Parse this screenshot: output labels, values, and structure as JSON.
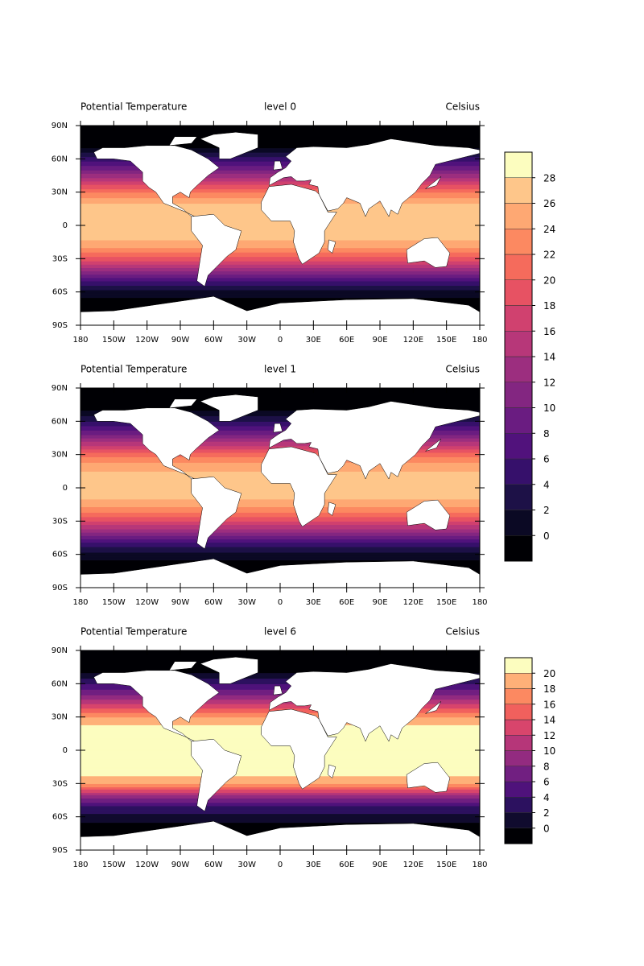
{
  "chart_data": [
    {
      "type": "contour",
      "title_left": "Potential Temperature",
      "title_center": "level 0",
      "title_right": "Celsius",
      "lat": [
        -90,
        -80,
        -70,
        -60,
        -50,
        -40,
        -30,
        -20,
        -10,
        0,
        10,
        20,
        30,
        40,
        50,
        60,
        70,
        80,
        90
      ],
      "values": [
        -2,
        -2,
        -1,
        1,
        6,
        13,
        19,
        24,
        27,
        27,
        28,
        26,
        22,
        16,
        10,
        5,
        0,
        -2,
        -2
      ],
      "levels": [
        -2,
        0,
        2,
        4,
        6,
        8,
        10,
        12,
        14,
        16,
        18,
        20,
        22,
        24,
        26,
        28,
        30
      ],
      "colors": [
        "#000004",
        "#0b0924",
        "#1d1147",
        "#36106b",
        "#51127c",
        "#6a1c81",
        "#832681",
        "#9c2e7f",
        "#b73779",
        "#d0416f",
        "#e75263",
        "#f56b5c",
        "#fc8961",
        "#fea873",
        "#fec68a",
        "#fcfdbf"
      ],
      "colorbar": true,
      "cbar_ticks": [
        0,
        2,
        4,
        6,
        8,
        10,
        12,
        14,
        16,
        18,
        20,
        22,
        24,
        26,
        28
      ],
      "xlim": [
        -180,
        180
      ],
      "ylim": [
        -90,
        90
      ],
      "xticks": [
        {
          "value": -180,
          "label": "180"
        },
        {
          "value": -150,
          "label": "150W"
        },
        {
          "value": -120,
          "label": "120W"
        },
        {
          "value": -90,
          "label": "90W"
        },
        {
          "value": -60,
          "label": "60W"
        },
        {
          "value": -30,
          "label": "30W"
        },
        0,
        {
          "value": 30,
          "label": "30E"
        },
        {
          "value": 60,
          "label": "60E"
        },
        {
          "value": 90,
          "label": "90E"
        },
        {
          "value": 120,
          "label": "120E"
        },
        {
          "value": 150,
          "label": "150E"
        },
        {
          "value": 180,
          "label": "180"
        }
      ],
      "yticks": [
        {
          "value": 90,
          "label": "90N"
        },
        {
          "value": 60,
          "label": "60N"
        },
        {
          "value": 30,
          "label": "30N"
        },
        0,
        {
          "value": -30,
          "label": "30S"
        },
        {
          "value": -60,
          "label": "60S"
        },
        {
          "value": -90,
          "label": "90S"
        }
      ]
    },
    {
      "type": "contour",
      "title_left": "Potential Temperature",
      "title_center": "level 1",
      "title_right": "Celsius",
      "lat": [
        -90,
        -80,
        -70,
        -60,
        -50,
        -40,
        -30,
        -20,
        -10,
        0,
        10,
        20,
        30,
        40,
        50,
        60,
        70,
        80,
        90
      ],
      "values": [
        -2,
        -2,
        -1,
        1,
        5,
        12,
        18,
        23,
        26,
        26,
        27,
        25,
        21,
        15,
        9,
        4,
        0,
        -2,
        -2
      ],
      "levels": [
        -2,
        0,
        2,
        4,
        6,
        8,
        10,
        12,
        14,
        16,
        18,
        20,
        22,
        24,
        26,
        28,
        30
      ],
      "colors": [
        "#000004",
        "#0b0924",
        "#1d1147",
        "#36106b",
        "#51127c",
        "#6a1c81",
        "#832681",
        "#9c2e7f",
        "#b73779",
        "#d0416f",
        "#e75263",
        "#f56b5c",
        "#fc8961",
        "#fea873",
        "#fec68a",
        "#fcfdbf"
      ],
      "colorbar": false,
      "xlim": [
        -180,
        180
      ],
      "ylim": [
        -90,
        90
      ],
      "xticks": [
        {
          "value": -180,
          "label": "180"
        },
        {
          "value": -150,
          "label": "150W"
        },
        {
          "value": -120,
          "label": "120W"
        },
        {
          "value": -90,
          "label": "90W"
        },
        {
          "value": -60,
          "label": "60W"
        },
        {
          "value": -30,
          "label": "30W"
        },
        0,
        {
          "value": 30,
          "label": "30E"
        },
        {
          "value": 60,
          "label": "60E"
        },
        {
          "value": 90,
          "label": "90E"
        },
        {
          "value": 120,
          "label": "120E"
        },
        {
          "value": 150,
          "label": "150E"
        },
        {
          "value": 180,
          "label": "180"
        }
      ],
      "yticks": [
        {
          "value": 90,
          "label": "90N"
        },
        {
          "value": 60,
          "label": "60N"
        },
        {
          "value": 30,
          "label": "30N"
        },
        0,
        {
          "value": -30,
          "label": "30S"
        },
        {
          "value": -60,
          "label": "60S"
        },
        {
          "value": -90,
          "label": "90S"
        }
      ]
    },
    {
      "type": "contour",
      "title_left": "Potential Temperature",
      "title_center": "level 6",
      "title_right": "Celsius",
      "lat": [
        -90,
        -80,
        -70,
        -60,
        -50,
        -40,
        -30,
        -20,
        -10,
        0,
        10,
        20,
        30,
        40,
        50,
        60,
        70,
        80,
        90
      ],
      "values": [
        -2,
        -2,
        -1,
        1,
        4,
        10,
        18,
        21,
        22,
        22,
        22,
        21,
        18,
        13,
        8,
        4,
        0,
        -2,
        -2
      ],
      "levels": [
        -2,
        0,
        2,
        4,
        6,
        8,
        10,
        12,
        14,
        16,
        18,
        20,
        22
      ],
      "colors": [
        "#000004",
        "#100b2e",
        "#2c115f",
        "#4f127b",
        "#711f81",
        "#932b80",
        "#b63679",
        "#d8456c",
        "#f1605d",
        "#fc8961",
        "#feb078",
        "#fcfdbf"
      ],
      "colorbar": true,
      "cbar_ticks": [
        0,
        2,
        4,
        6,
        8,
        10,
        12,
        14,
        16,
        18,
        20
      ],
      "xlim": [
        -180,
        180
      ],
      "ylim": [
        -90,
        90
      ],
      "xticks": [
        {
          "value": -180,
          "label": "180"
        },
        {
          "value": -150,
          "label": "150W"
        },
        {
          "value": -120,
          "label": "120W"
        },
        {
          "value": -90,
          "label": "90W"
        },
        {
          "value": -60,
          "label": "60W"
        },
        {
          "value": -30,
          "label": "30W"
        },
        0,
        {
          "value": 30,
          "label": "30E"
        },
        {
          "value": 60,
          "label": "60E"
        },
        {
          "value": 90,
          "label": "90E"
        },
        {
          "value": 120,
          "label": "120E"
        },
        {
          "value": 150,
          "label": "150E"
        },
        {
          "value": 180,
          "label": "180"
        }
      ],
      "yticks": [
        {
          "value": 90,
          "label": "90N"
        },
        {
          "value": 60,
          "label": "60N"
        },
        {
          "value": 30,
          "label": "30N"
        },
        0,
        {
          "value": -30,
          "label": "30S"
        },
        {
          "value": -60,
          "label": "60S"
        },
        {
          "value": -90,
          "label": "90S"
        }
      ]
    }
  ]
}
